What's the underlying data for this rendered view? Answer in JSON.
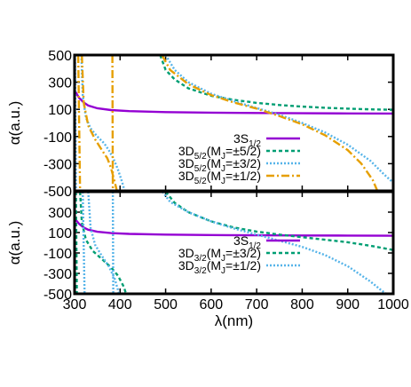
{
  "chart_data": [
    {
      "type": "line",
      "panel": "top",
      "xlabel": "",
      "ylabel": "α(a.u.)",
      "xlim": [
        300,
        1000
      ],
      "ylim": [
        -500,
        500
      ],
      "x_ticks": [],
      "y_ticks": [
        "500",
        "300",
        "100",
        "-100",
        "-300",
        "-500"
      ],
      "y_tick_values": [
        500,
        300,
        100,
        -100,
        -300,
        -500
      ],
      "legend_position": "lower-right",
      "series": [
        {
          "name": "3S1/2",
          "label_main": "3S",
          "label_sub": "1/2",
          "label_tail": "",
          "color": "#9400d3",
          "style": "solid",
          "segments": [
            [
              [
                300,
                240
              ],
              [
                310,
                185
              ],
              [
                320,
                150
              ],
              [
                330,
                128
              ],
              [
                350,
                108
              ],
              [
                380,
                95
              ],
              [
                420,
                87
              ],
              [
                500,
                80
              ],
              [
                600,
                76
              ],
              [
                700,
                73
              ],
              [
                800,
                71
              ],
              [
                900,
                70
              ],
              [
                1000,
                69
              ]
            ]
          ]
        },
        {
          "name": "3D5/2(MJ=±5/2)",
          "label_main": "3D",
          "label_sub": "5/2",
          "label_tail": "(M",
          "label_sub2": "J",
          "label_tail2": "=±5/2)",
          "color": "#009e73",
          "style": "dotted",
          "segments": [
            [
              [
                488,
                500
              ],
              [
                500,
                390
              ],
              [
                520,
                320
              ],
              [
                550,
                255
              ],
              [
                600,
                200
              ],
              [
                650,
                170
              ],
              [
                700,
                148
              ],
              [
                750,
                132
              ],
              [
                800,
                120
              ],
              [
                850,
                112
              ],
              [
                900,
                105
              ],
              [
                950,
                100
              ],
              [
                1000,
                97
              ]
            ]
          ]
        },
        {
          "name": "3D5/2(MJ=±3/2)",
          "label_main": "3D",
          "label_sub": "5/2",
          "label_tail": "(M",
          "label_sub2": "J",
          "label_tail2": "=±3/2)",
          "color": "#56b4e9",
          "style": "fine-dotted",
          "segments": [
            [
              [
                301,
                500
              ],
              [
                303,
                -500
              ]
            ],
            [
              [
                315,
                500
              ],
              [
                318,
                200
              ],
              [
                325,
                40
              ],
              [
                335,
                -40
              ],
              [
                350,
                -100
              ],
              [
                365,
                -150
              ],
              [
                375,
                -200
              ],
              [
                385,
                -260
              ],
              [
                395,
                -340
              ],
              [
                405,
                -440
              ],
              [
                410,
                -500
              ]
            ],
            [
              [
                500,
                500
              ],
              [
                520,
                390
              ],
              [
                550,
                300
              ],
              [
                600,
                215
              ],
              [
                650,
                160
              ],
              [
                700,
                110
              ],
              [
                750,
                60
              ],
              [
                800,
                0
              ],
              [
                850,
                -70
              ],
              [
                900,
                -160
              ],
              [
                950,
                -280
              ],
              [
                980,
                -380
              ],
              [
                1000,
                -440
              ]
            ]
          ]
        },
        {
          "name": "3D5/2(MJ=±1/2)",
          "label_main": "3D",
          "label_sub": "5/2",
          "label_tail": "(M",
          "label_sub2": "J",
          "label_tail2": "=±1/2)",
          "color": "#e69f00",
          "style": "dash-dot",
          "segments": [
            [
              [
                308,
                500
              ],
              [
                312,
                -500
              ]
            ],
            [
              [
                316,
                500
              ],
              [
                320,
                150
              ],
              [
                330,
                -20
              ],
              [
                345,
                -120
              ],
              [
                360,
                -200
              ],
              [
                372,
                -260
              ],
              [
                380,
                -330
              ],
              [
                390,
                -460
              ],
              [
                393,
                -500
              ]
            ],
            [
              [
                383,
                500
              ],
              [
                384,
                -500
              ]
            ],
            [
              [
                492,
                500
              ],
              [
                510,
                390
              ],
              [
                550,
                285
              ],
              [
                600,
                205
              ],
              [
                650,
                150
              ],
              [
                700,
                105
              ],
              [
                750,
                50
              ],
              [
                800,
                -10
              ],
              [
                850,
                -90
              ],
              [
                900,
                -200
              ],
              [
                930,
                -300
              ],
              [
                955,
                -420
              ],
              [
                965,
                -500
              ]
            ]
          ]
        }
      ]
    },
    {
      "type": "line",
      "panel": "bottom",
      "xlabel": "λ(nm)",
      "ylabel": "α(a.u.)",
      "xlim": [
        300,
        1000
      ],
      "ylim": [
        -500,
        500
      ],
      "x_ticks": [
        "300",
        "400",
        "500",
        "600",
        "700",
        "800",
        "900",
        "1000"
      ],
      "x_tick_values": [
        300,
        400,
        500,
        600,
        700,
        800,
        900,
        1000
      ],
      "y_ticks": [
        "300",
        "100",
        "-100",
        "-300",
        "-500"
      ],
      "y_tick_values": [
        300,
        100,
        -100,
        -300,
        -500
      ],
      "legend_position": "lower-right",
      "series": [
        {
          "name": "3S1/2",
          "label_main": "3S",
          "label_sub": "1/2",
          "label_tail": "",
          "color": "#9400d3",
          "style": "solid",
          "segments": [
            [
              [
                300,
                240
              ],
              [
                310,
                185
              ],
              [
                320,
                150
              ],
              [
                330,
                128
              ],
              [
                350,
                108
              ],
              [
                380,
                95
              ],
              [
                420,
                87
              ],
              [
                500,
                80
              ],
              [
                600,
                76
              ],
              [
                700,
                73
              ],
              [
                800,
                71
              ],
              [
                900,
                70
              ],
              [
                1000,
                69
              ]
            ]
          ]
        },
        {
          "name": "3D3/2(MJ=±3/2)",
          "label_main": "3D",
          "label_sub": "3/2",
          "label_tail": "(M",
          "label_sub2": "J",
          "label_tail2": "=±3/2)",
          "color": "#009e73",
          "style": "dotted",
          "segments": [
            [
              [
                303,
                500
              ],
              [
                305,
                -500
              ]
            ],
            [
              [
                312,
                500
              ],
              [
                316,
                200
              ],
              [
                325,
                30
              ],
              [
                340,
                -80
              ],
              [
                360,
                -160
              ],
              [
                380,
                -240
              ],
              [
                395,
                -320
              ],
              [
                408,
                -430
              ],
              [
                413,
                -500
              ]
            ],
            [
              [
                500,
                500
              ],
              [
                520,
                390
              ],
              [
                550,
                300
              ],
              [
                600,
                210
              ],
              [
                650,
                150
              ],
              [
                700,
                110
              ],
              [
                750,
                80
              ],
              [
                800,
                55
              ],
              [
                850,
                30
              ],
              [
                900,
                5
              ],
              [
                950,
                -30
              ],
              [
                1000,
                -70
              ]
            ]
          ]
        },
        {
          "name": "3D3/2(MJ=±1/2)",
          "label_main": "3D",
          "label_sub": "3/2",
          "label_tail": "(M",
          "label_sub2": "J",
          "label_tail2": "=±1/2)",
          "color": "#56b4e9",
          "style": "fine-dotted",
          "segments": [
            [
              [
                318,
                500
              ],
              [
                322,
                -500
              ]
            ],
            [
              [
                330,
                500
              ],
              [
                335,
                150
              ],
              [
                345,
                -20
              ],
              [
                360,
                -130
              ],
              [
                375,
                -230
              ],
              [
                388,
                -350
              ],
              [
                396,
                -470
              ],
              [
                398,
                -500
              ]
            ],
            [
              [
                384,
                500
              ],
              [
                385,
                -500
              ]
            ],
            [
              [
                493,
                500
              ],
              [
                510,
                400
              ],
              [
                550,
                300
              ],
              [
                600,
                210
              ],
              [
                650,
                140
              ],
              [
                700,
                80
              ],
              [
                750,
                20
              ],
              [
                800,
                -40
              ],
              [
                850,
                -120
              ],
              [
                900,
                -230
              ],
              [
                950,
                -380
              ],
              [
                975,
                -470
              ],
              [
                985,
                -500
              ]
            ]
          ]
        }
      ]
    }
  ]
}
